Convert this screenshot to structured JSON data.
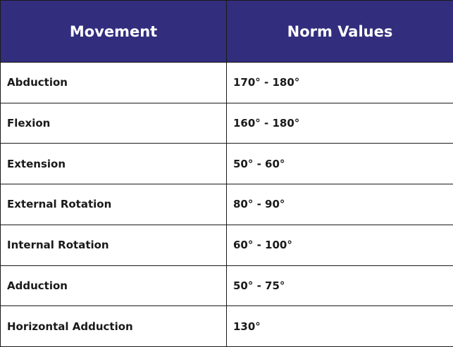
{
  "table": {
    "headers": [
      "Movement",
      "Norm Values"
    ],
    "rows": [
      [
        "Abduction",
        "170° - 180°"
      ],
      [
        "Flexion",
        "160° - 180°"
      ],
      [
        "Extension",
        "50° - 60°"
      ],
      [
        "External Rotation",
        "80° - 90°"
      ],
      [
        "Internal Rotation",
        "60° - 100°"
      ],
      [
        "Adduction",
        "50° - 75°"
      ],
      [
        "Horizontal Adduction",
        "130°"
      ]
    ]
  },
  "colors": {
    "header_background": "#322d7d",
    "header_text": "#ffffff",
    "body_text": "#1a1a1a",
    "border": "#1a1a1a"
  }
}
